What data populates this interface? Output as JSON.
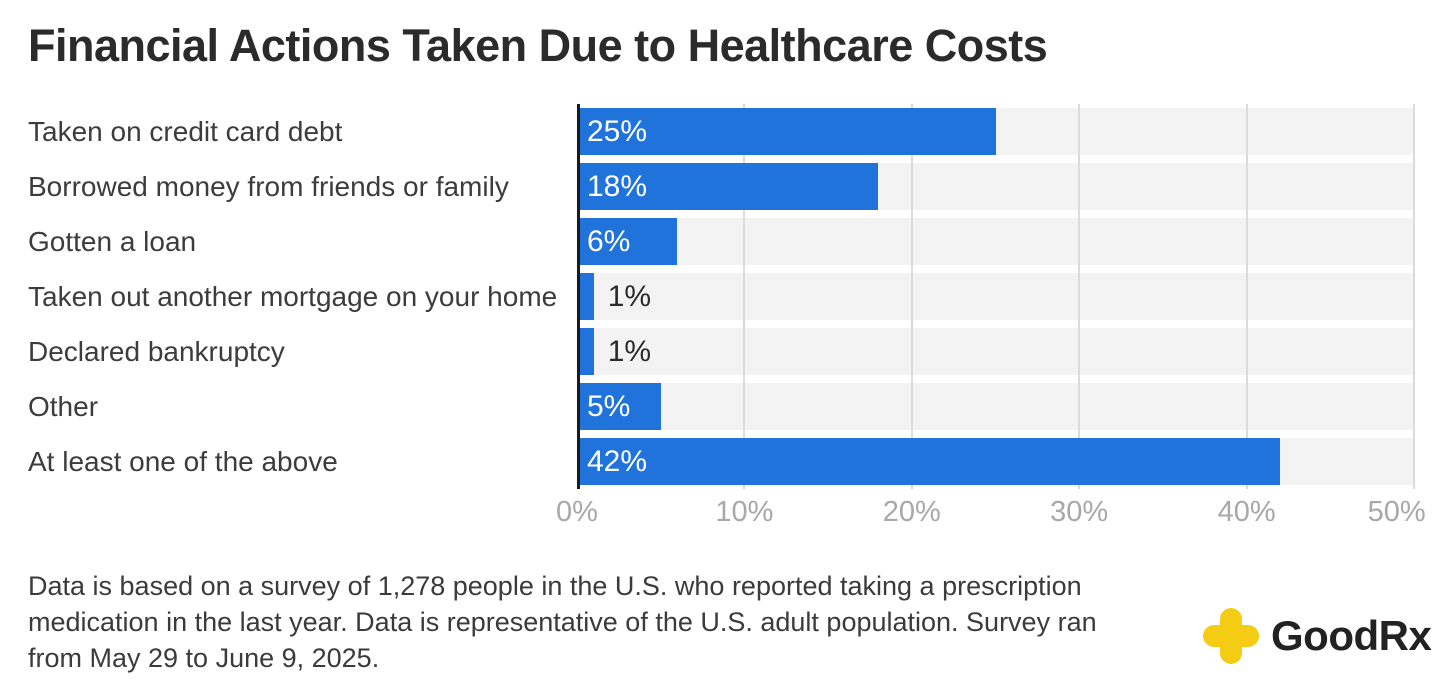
{
  "title": "Financial Actions Taken Due to Healthcare Costs",
  "chart_data": {
    "type": "bar",
    "orientation": "horizontal",
    "title": "Financial Actions Taken Due to Healthcare Costs",
    "categories": [
      "Taken on credit card debt",
      "Borrowed money from friends or family",
      "Gotten a loan",
      "Taken out another mortgage on your home",
      "Declared bankruptcy",
      "Other",
      "At least one of the above"
    ],
    "values": [
      25,
      18,
      6,
      1,
      1,
      5,
      42
    ],
    "value_labels": [
      "25%",
      "18%",
      "6%",
      "1%",
      "1%",
      "5%",
      "42%"
    ],
    "xlabel": "",
    "ylabel": "",
    "xlim": [
      0,
      50
    ],
    "x_ticks": [
      0,
      10,
      20,
      30,
      40,
      50
    ],
    "x_tick_labels": [
      "0%",
      "10%",
      "20%",
      "30%",
      "40%",
      "50%"
    ],
    "grid": true,
    "legend": false,
    "bar_color": "#2173dc",
    "track_color": "#f3f3f4",
    "inside_label_color": "#ffffff",
    "outside_label_color": "#2b2b2b",
    "inside_label_threshold": 4
  },
  "footer": {
    "lines": [
      "Data is based on a survey of 1,278 people in the U.S. who reported taking a prescription",
      "medication in the last year. Data is representative of the U.S. adult population. Survey ran",
      "from May 29 to June 9, 2025."
    ]
  },
  "logo": {
    "brand_bold": "Good",
    "brand_suffix": "Rx",
    "icon_color": "#f3cc13"
  }
}
